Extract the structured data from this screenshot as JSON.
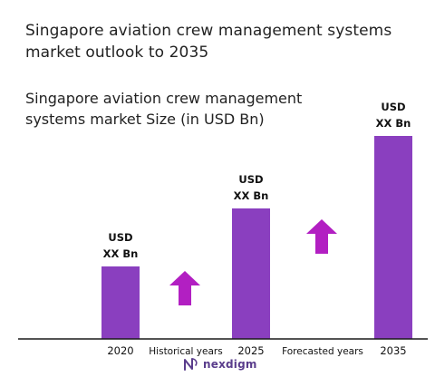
{
  "page": {
    "title": "Singapore aviation crew management systems market outlook to 2035",
    "subtitle": "Singapore aviation crew management systems market Size (in USD Bn)",
    "brand": "nexdigm"
  },
  "colors": {
    "bar": "#8a3fbf",
    "arrow": "#b21fc2",
    "axis": "#1a1a1a",
    "brand": "#5a3d8c"
  },
  "chart_data": {
    "type": "bar",
    "categories": [
      "2020",
      "2025",
      "2035"
    ],
    "values": [
      1.0,
      1.8,
      2.8
    ],
    "data_labels": [
      [
        "USD",
        "XX Bn"
      ],
      [
        "USD",
        "XX Bn"
      ],
      [
        "USD",
        "XX Bn"
      ]
    ],
    "periods": [
      "Historical years",
      "Forecasted years"
    ],
    "ylim": [
      0,
      3.0
    ],
    "grid": false,
    "legend": "none"
  }
}
